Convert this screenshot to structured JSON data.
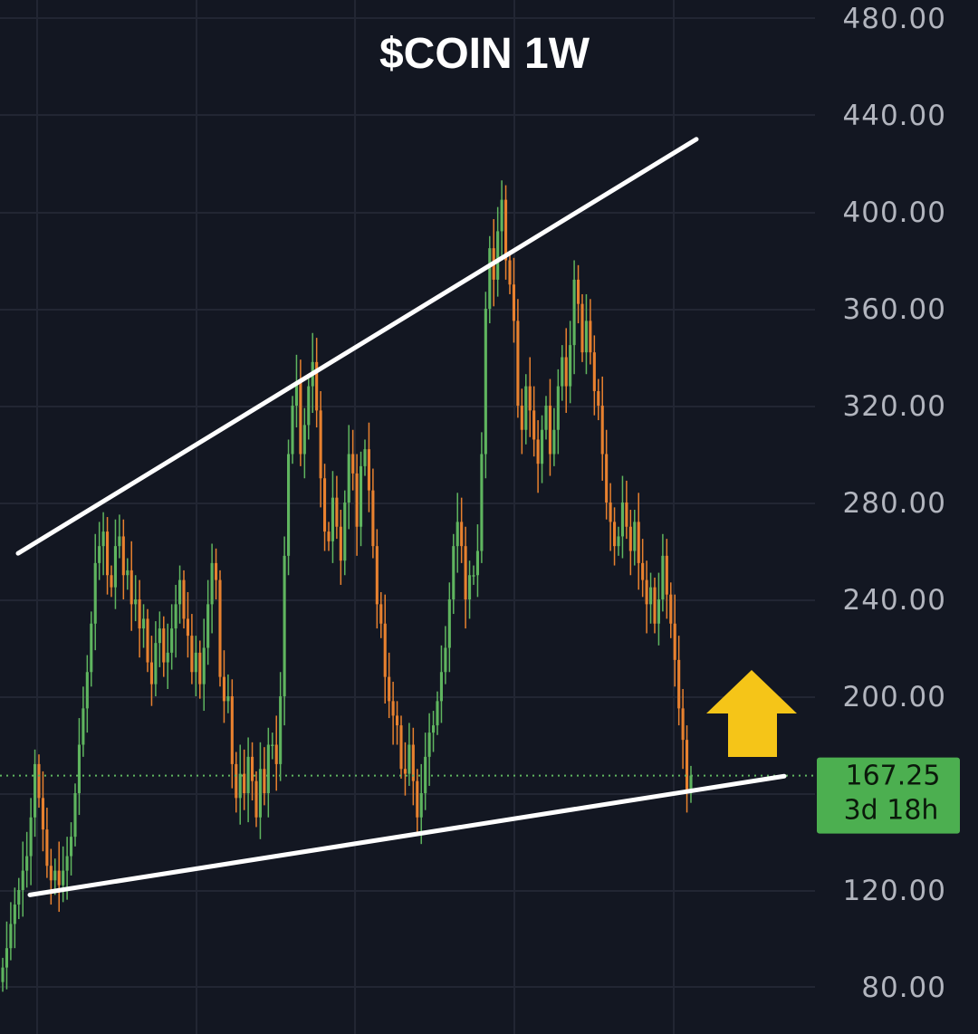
{
  "chart_data": {
    "type": "candlestick",
    "title": "$COIN 1W",
    "y_axis": {
      "ylim": [
        66,
        488
      ],
      "ticks": [
        "480.00",
        "440.00",
        "400.00",
        "360.00",
        "320.00",
        "280.00",
        "240.00",
        "200.00",
        "120.00",
        "80.00"
      ],
      "tick_values": [
        480,
        440,
        400,
        360,
        320,
        280,
        240,
        200,
        120,
        80
      ],
      "position": "right"
    },
    "last_price": {
      "value": 167.25,
      "label": "167.25",
      "countdown": "3d 18h",
      "color": "#4caf50"
    },
    "colors": {
      "background": "#131722",
      "grid": "#222633",
      "up": "#5fb55f",
      "down": "#e8812f",
      "trendline": "#ffffff",
      "arrow": "#f5c518"
    },
    "closes": [
      88,
      96,
      106,
      114,
      120,
      128,
      134,
      150,
      172,
      158,
      145,
      130,
      124,
      128,
      122,
      128,
      134,
      142,
      160,
      180,
      195,
      210,
      230,
      255,
      262,
      268,
      250,
      245,
      262,
      266,
      250,
      252,
      238,
      240,
      228,
      232,
      214,
      205,
      222,
      228,
      214,
      218,
      228,
      238,
      248,
      232,
      225,
      210,
      218,
      205,
      220,
      238,
      255,
      248,
      208,
      198,
      200,
      172,
      158,
      168,
      160,
      175,
      165,
      150,
      170,
      160,
      180,
      180,
      172,
      200,
      258,
      300,
      320,
      330,
      300,
      312,
      328,
      338,
      318,
      290,
      268,
      264,
      282,
      270,
      256,
      280,
      300,
      292,
      270,
      295,
      302,
      285,
      262,
      238,
      230,
      208,
      198,
      192,
      188,
      170,
      168,
      180,
      165,
      150,
      160,
      175,
      185,
      188,
      198,
      210,
      220,
      240,
      262,
      272,
      262,
      240,
      250,
      250,
      260,
      300,
      360,
      385,
      372,
      392,
      405,
      380,
      370,
      355,
      320,
      310,
      328,
      318,
      306,
      296,
      310,
      320,
      300,
      310,
      328,
      340,
      328,
      345,
      372,
      362,
      342,
      355,
      342,
      326,
      320,
      300,
      280,
      272,
      262,
      266,
      280,
      270,
      260,
      272,
      255,
      248,
      238,
      245,
      230,
      240,
      258,
      242,
      230,
      215,
      195,
      182,
      160,
      167.25
    ],
    "trendlines": [
      {
        "from": {
          "bar": 0,
          "price": 259
        },
        "to": {
          "bar": 171,
          "price": 430
        }
      },
      {
        "from": {
          "bar": 0,
          "price": 118
        },
        "to": {
          "bar": 171,
          "price": 167
        }
      }
    ],
    "annotation": "up-arrow"
  }
}
